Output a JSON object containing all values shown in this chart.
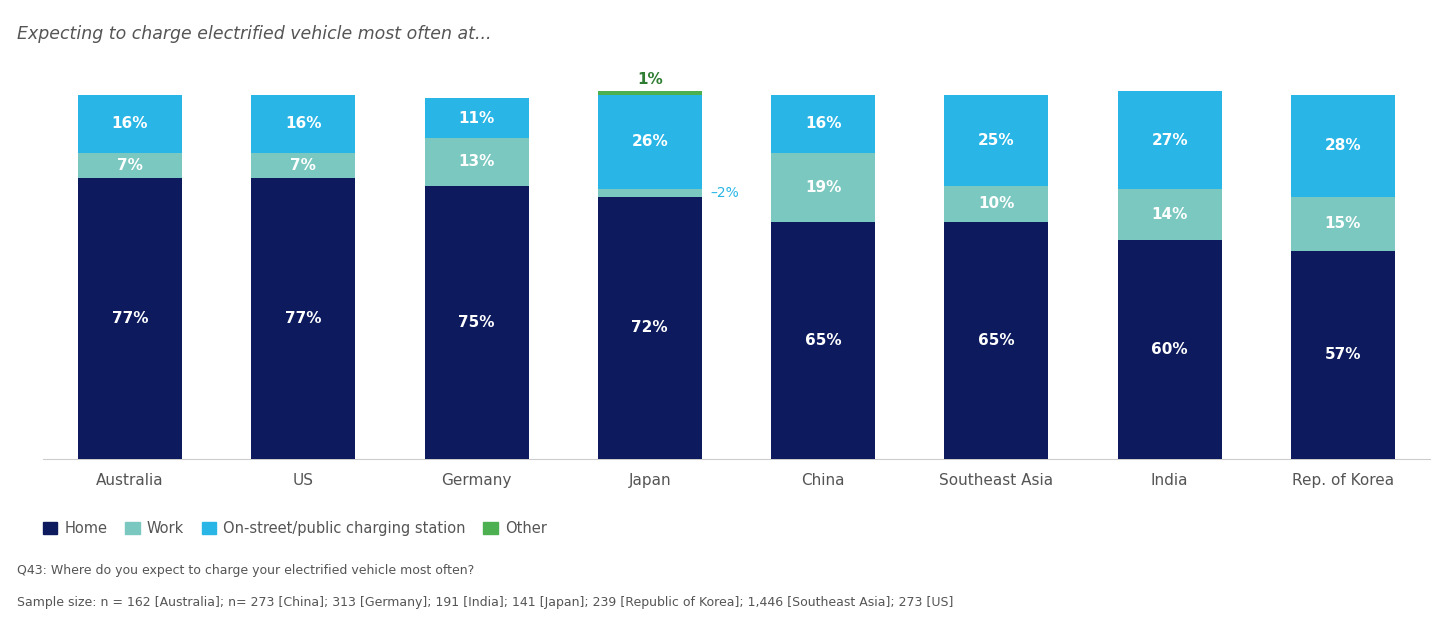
{
  "title": "Expecting to charge electrified vehicle most often at...",
  "categories": [
    "Australia",
    "US",
    "Germany",
    "Japan",
    "China",
    "Southeast Asia",
    "India",
    "Rep. of Korea"
  ],
  "home": [
    77,
    77,
    75,
    72,
    65,
    65,
    60,
    57
  ],
  "work": [
    7,
    7,
    13,
    2,
    19,
    10,
    14,
    15
  ],
  "public": [
    16,
    16,
    11,
    26,
    16,
    25,
    27,
    28
  ],
  "other": [
    0,
    0,
    0,
    1,
    0,
    0,
    0,
    0
  ],
  "color_home": "#0d1b5e",
  "color_work": "#7bc8c0",
  "color_public": "#29b6e6",
  "color_other": "#4caf50",
  "legend_labels": [
    "Home",
    "Work",
    "On-street/public charging station",
    "Other"
  ],
  "footnote1": "Q43: Where do you expect to charge your electrified vehicle most often?",
  "footnote2": "Sample size: n = 162 [Australia]; n= 273 [China]; 313 [Germany]; 191 [India]; 141 [Japan]; 239 [Republic of Korea]; 1,446 [Southeast Asia]; 273 [US]",
  "bar_width": 0.6,
  "ylim": [
    0,
    105
  ],
  "title_color": "#555555",
  "label_color_white": "#ffffff",
  "label_color_dark_green": "#2e7d32",
  "bg_color": "#ffffff",
  "axis_label_color": "#555555",
  "footnote_color": "#555555"
}
